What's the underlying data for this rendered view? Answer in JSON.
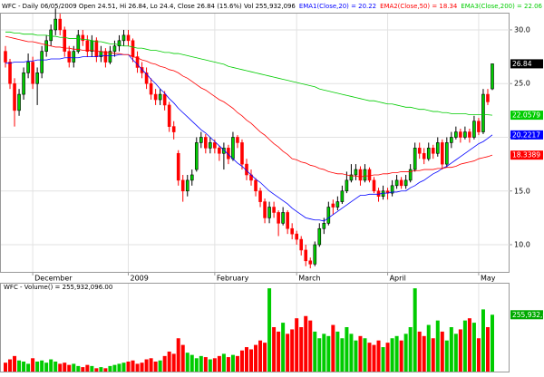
{
  "chart_data": {
    "type": "candlestick",
    "title": "WFC - Daily 06/05/2009 Open 24.51, Hi 26.84, Lo 24.4, Close 26.84 (15.6%) Vol 255,932,096",
    "xticks": [
      {
        "value": 6,
        "label": "December"
      },
      {
        "value": 27,
        "label": "2009"
      },
      {
        "value": 46,
        "label": "February"
      },
      {
        "value": 64,
        "label": "March"
      },
      {
        "value": 84,
        "label": "April"
      },
      {
        "value": 104,
        "label": "May"
      }
    ],
    "ylim": [
      7.47,
      31.6
    ],
    "yticks": [
      {
        "value": 10,
        "label": "10.0"
      },
      {
        "value": 15,
        "label": "15.0"
      },
      {
        "value": 20,
        "label": "20.0"
      },
      {
        "value": 25,
        "label": "25.0"
      },
      {
        "value": 30,
        "label": "30.0"
      }
    ],
    "grid": true,
    "up_color": "#00cc00",
    "down_color": "#ff0000",
    "candles": [
      [
        28,
        28.5,
        26.5,
        27
      ],
      [
        27,
        27.3,
        24.5,
        25
      ],
      [
        25,
        25.5,
        21,
        22.5
      ],
      [
        22.5,
        24.5,
        22,
        24
      ],
      [
        24,
        26.5,
        23.5,
        26
      ],
      [
        26,
        27.8,
        25.5,
        27
      ],
      [
        27,
        27.5,
        24.5,
        25
      ],
      [
        25,
        26.5,
        23,
        26
      ],
      [
        26,
        28.5,
        25.5,
        28
      ],
      [
        28,
        29.5,
        27.5,
        29
      ],
      [
        29,
        30.5,
        28.5,
        30
      ],
      [
        30,
        32,
        29.5,
        31
      ],
      [
        31,
        31.5,
        29.5,
        30
      ],
      [
        30,
        30.3,
        27.5,
        28
      ],
      [
        28,
        28.5,
        26.5,
        27
      ],
      [
        27,
        28.5,
        26.5,
        28
      ],
      [
        28,
        30,
        27.8,
        29.5
      ],
      [
        29.5,
        30,
        28.5,
        29
      ],
      [
        29,
        29.5,
        27.5,
        28
      ],
      [
        28,
        29.5,
        27.5,
        29
      ],
      [
        29,
        29.3,
        27,
        27.5
      ],
      [
        27.5,
        28.5,
        27,
        28
      ],
      [
        28,
        28.3,
        26.5,
        27
      ],
      [
        27,
        28.5,
        26.8,
        28
      ],
      [
        28,
        29,
        27.5,
        28.5
      ],
      [
        28.5,
        29.5,
        28,
        29
      ],
      [
        29,
        30,
        28.5,
        29.5
      ],
      [
        29.5,
        30,
        28.5,
        29
      ],
      [
        29,
        29.2,
        27,
        27.5
      ],
      [
        27.5,
        28,
        26,
        26.5
      ],
      [
        26.5,
        27,
        25.5,
        26
      ],
      [
        26,
        26.5,
        24.5,
        25
      ],
      [
        25,
        25.5,
        23.5,
        24
      ],
      [
        24,
        24.5,
        23,
        23.5
      ],
      [
        23.5,
        24.5,
        23,
        24
      ],
      [
        24,
        24.3,
        22.5,
        23
      ],
      [
        23,
        23.3,
        20.5,
        21
      ],
      [
        21,
        21.5,
        19.8,
        20.5
      ],
      [
        18.5,
        18.8,
        15.5,
        16
      ],
      [
        16,
        16.5,
        14,
        15
      ],
      [
        15,
        16.5,
        14.5,
        16
      ],
      [
        16,
        17,
        15.5,
        16.5
      ],
      [
        17,
        20,
        16.8,
        19.5
      ],
      [
        19.5,
        20.5,
        19,
        20
      ],
      [
        20,
        20.3,
        18.5,
        19
      ],
      [
        19,
        20,
        18.5,
        19.5
      ],
      [
        19.5,
        19.8,
        18.5,
        19
      ],
      [
        19,
        19.2,
        17.8,
        18.5
      ],
      [
        18.5,
        19.5,
        17,
        19
      ],
      [
        19,
        19.3,
        17.5,
        18
      ],
      [
        18,
        20.5,
        17.8,
        20
      ],
      [
        20,
        20.2,
        19,
        19.5
      ],
      [
        19.5,
        19.8,
        17,
        17.5
      ],
      [
        17.5,
        18,
        16,
        16.5
      ],
      [
        16.5,
        17,
        15.5,
        16
      ],
      [
        16,
        16.2,
        14.5,
        15
      ],
      [
        15,
        15.3,
        13.5,
        14
      ],
      [
        14,
        14.3,
        12,
        12.5
      ],
      [
        12.5,
        14,
        12,
        13.5
      ],
      [
        13.5,
        14,
        12.5,
        13
      ],
      [
        13,
        13.2,
        10.8,
        12
      ],
      [
        12,
        13.5,
        11.8,
        13
      ],
      [
        13,
        13.2,
        11,
        11.5
      ],
      [
        11.5,
        12,
        10.5,
        11
      ],
      [
        11,
        11.3,
        10,
        10.5
      ],
      [
        10.5,
        10.8,
        9,
        9.5
      ],
      [
        9.5,
        10,
        8,
        8.5
      ],
      [
        8.5,
        8.8,
        7.8,
        8.2
      ],
      [
        8.2,
        10.3,
        8,
        10
      ],
      [
        10,
        12,
        9.8,
        11.5
      ],
      [
        11.5,
        12.5,
        11,
        12
      ],
      [
        12,
        14,
        11.8,
        13.5
      ],
      [
        13.8,
        14.2,
        12.8,
        13.5
      ],
      [
        13.5,
        14.5,
        13.2,
        14
      ],
      [
        14,
        15.5,
        13.8,
        15
      ],
      [
        15,
        16.8,
        14.8,
        16
      ],
      [
        16,
        17.5,
        15.8,
        16.5
      ],
      [
        16.5,
        17.5,
        16,
        17
      ],
      [
        17,
        17.3,
        15.5,
        16
      ],
      [
        16,
        17.5,
        15.8,
        17
      ],
      [
        17,
        17.2,
        15.8,
        16
      ],
      [
        16,
        16.3,
        14.8,
        15
      ],
      [
        15,
        15.3,
        14,
        14.5
      ],
      [
        14.5,
        15.5,
        14.2,
        15
      ],
      [
        15,
        15.3,
        14.2,
        14.8
      ],
      [
        14.8,
        16,
        14.5,
        15.5
      ],
      [
        15.5,
        16.5,
        15.2,
        16
      ],
      [
        16,
        16.3,
        15.2,
        15.5
      ],
      [
        15.5,
        16.5,
        15.2,
        16
      ],
      [
        16,
        17.5,
        15.8,
        17
      ],
      [
        17,
        19.5,
        16.8,
        19
      ],
      [
        19,
        19.5,
        18,
        18.5
      ],
      [
        18.5,
        19,
        17.5,
        18
      ],
      [
        18,
        19.5,
        17.8,
        19
      ],
      [
        19,
        19.3,
        18,
        18.5
      ],
      [
        18.5,
        20,
        18.2,
        19.5
      ],
      [
        19.5,
        19.8,
        17,
        17.5
      ],
      [
        17.5,
        20,
        17.2,
        19.5
      ],
      [
        19.5,
        20.5,
        19,
        20
      ],
      [
        20,
        21,
        19.8,
        20.5
      ],
      [
        20.5,
        20.8,
        19.5,
        20
      ],
      [
        20,
        21,
        19.8,
        20.5
      ],
      [
        20.5,
        20.8,
        19.5,
        20
      ],
      [
        20,
        22,
        19.8,
        21.5
      ],
      [
        21.5,
        21.8,
        20.2,
        20.5
      ],
      [
        20.5,
        24.5,
        20.3,
        24
      ],
      [
        24,
        24.5,
        23,
        23.3
      ],
      [
        24.51,
        26.84,
        24.4,
        26.84
      ]
    ],
    "series": [
      {
        "name": "EMA1(Close,20) = 20.22",
        "color": "#0000ff",
        "values": [
          26.9,
          26.9,
          27.0,
          27.0,
          27.0,
          27.1,
          27.1,
          27.2,
          27.2,
          27.2,
          27.3,
          27.3,
          27.3,
          27.4,
          27.4,
          27.4,
          27.4,
          27.5,
          27.5,
          27.5,
          27.5,
          27.6,
          27.6,
          27.6,
          27.6,
          27.7,
          27.7,
          27.7,
          27.2,
          26.8,
          26.3,
          25.9,
          25.4,
          25.0,
          24.5,
          24.1,
          23.6,
          23.2,
          22.7,
          22.3,
          21.9,
          21.5,
          21.1,
          20.7,
          20.4,
          20.0,
          19.6,
          19.2,
          18.8,
          18.4,
          18.0,
          17.6,
          17.3,
          16.9,
          16.5,
          16.1,
          15.8,
          15.4,
          15.0,
          14.7,
          14.4,
          14.1,
          13.8,
          13.4,
          13.1,
          12.8,
          12.5,
          12.4,
          12.3,
          12.3,
          12.2,
          12.5,
          12.8,
          13.1,
          13.4,
          13.7,
          14.0,
          14.3,
          14.6,
          14.6,
          14.7,
          14.7,
          14.7,
          14.8,
          14.8,
          14.9,
          14.9,
          15.0,
          15.0,
          15.3,
          15.5,
          15.8,
          16.0,
          16.3,
          16.6,
          16.8,
          17.1,
          17.3,
          17.6,
          17.9,
          18.2,
          18.5,
          18.8,
          19.1,
          19.4,
          19.6,
          19.9,
          20.2217
        ]
      },
      {
        "name": "EMA2(Close,50) = 18.34",
        "color": "#ff0000",
        "values": [
          29.4,
          29.3,
          29.2,
          29.1,
          29.0,
          28.9,
          28.9,
          28.8,
          28.7,
          28.6,
          28.5,
          28.4,
          28.4,
          28.3,
          28.3,
          28.2,
          28.2,
          28.1,
          28.1,
          28.1,
          28.0,
          28.0,
          27.9,
          27.9,
          27.8,
          27.8,
          27.7,
          27.7,
          27.5,
          27.4,
          27.2,
          27.1,
          26.9,
          26.8,
          26.6,
          26.5,
          26.3,
          26.2,
          26.0,
          25.7,
          25.5,
          25.2,
          24.9,
          24.6,
          24.4,
          24.1,
          23.8,
          23.5,
          23.3,
          23.0,
          22.7,
          22.3,
          22.0,
          21.6,
          21.3,
          20.9,
          20.5,
          20.2,
          19.8,
          19.4,
          19.1,
          18.7,
          18.4,
          18.0,
          17.9,
          17.7,
          17.6,
          17.4,
          17.3,
          17.1,
          17.0,
          16.8,
          16.7,
          16.6,
          16.6,
          16.5,
          16.4,
          16.4,
          16.3,
          16.4,
          16.4,
          16.5,
          16.5,
          16.6,
          16.6,
          16.7,
          16.7,
          16.8,
          16.8,
          16.8,
          16.9,
          16.9,
          17.0,
          17.0,
          17.0,
          17.1,
          17.1,
          17.2,
          17.2,
          17.3,
          17.5,
          17.6,
          17.7,
          17.8,
          18.0,
          18.1,
          18.2,
          18.3389
        ]
      },
      {
        "name": "EMA3(Close,200) = 22.06",
        "color": "#00cc00",
        "values": [
          29.8,
          29.8,
          29.7,
          29.7,
          29.6,
          29.6,
          29.6,
          29.5,
          29.5,
          29.5,
          29.4,
          29.4,
          29.3,
          29.3,
          29.2,
          29.2,
          29.2,
          29.1,
          29.1,
          29.0,
          28.9,
          28.9,
          28.8,
          28.7,
          28.7,
          28.6,
          28.5,
          28.5,
          28.4,
          28.3,
          28.3,
          28.2,
          28.1,
          28.1,
          28.0,
          27.9,
          27.9,
          27.8,
          27.8,
          27.7,
          27.6,
          27.5,
          27.4,
          27.3,
          27.2,
          27.1,
          27.0,
          26.9,
          26.8,
          26.6,
          26.5,
          26.4,
          26.3,
          26.2,
          26.1,
          26.0,
          25.9,
          25.8,
          25.7,
          25.6,
          25.5,
          25.4,
          25.3,
          25.2,
          25.1,
          25.0,
          24.9,
          24.8,
          24.7,
          24.5,
          24.4,
          24.3,
          24.2,
          24.1,
          24.0,
          23.9,
          23.8,
          23.7,
          23.6,
          23.5,
          23.4,
          23.4,
          23.3,
          23.2,
          23.1,
          23.1,
          23.0,
          22.9,
          22.8,
          22.8,
          22.7,
          22.6,
          22.6,
          22.5,
          22.4,
          22.4,
          22.3,
          22.3,
          22.2,
          22.2,
          22.2,
          22.2,
          22.1,
          22.1,
          22.1,
          22.1,
          22.1,
          22.0579
        ]
      }
    ],
    "volume": {
      "title": "WFC - Volume() = 255,932,096.00",
      "label": "255,932,096",
      "color": "#00aa00",
      "ylim": [
        0,
        400000000.0
      ],
      "values": [
        40000000.0,
        55000000.0,
        70000000.0,
        50000000.0,
        45000000.0,
        35000000.0,
        60000000.0,
        45000000.0,
        50000000.0,
        40000000.0,
        55000000.0,
        45000000.0,
        35000000.0,
        40000000.0,
        30000000.0,
        35000000.0,
        25000000.0,
        20000000.0,
        30000000.0,
        25000000.0,
        15000000.0,
        20000000.0,
        15000000.0,
        25000000.0,
        30000000.0,
        35000000.0,
        40000000.0,
        45000000.0,
        50000000.0,
        35000000.0,
        40000000.0,
        55000000.0,
        60000000.0,
        45000000.0,
        50000000.0,
        70000000.0,
        90000000.0,
        80000000.0,
        150000000.0,
        120000000.0,
        85000000.0,
        75000000.0,
        60000000.0,
        70000000.0,
        65000000.0,
        55000000.0,
        60000000.0,
        70000000.0,
        80000000.0,
        65000000.0,
        75000000.0,
        70000000.0,
        95000000.0,
        110000000.0,
        100000000.0,
        120000000.0,
        140000000.0,
        130000000.0,
        375000000.0,
        200000000.0,
        180000000.0,
        220000000.0,
        170000000.0,
        190000000.0,
        240000000.0,
        200000000.0,
        250000000.0,
        230000000.0,
        180000000.0,
        150000000.0,
        170000000.0,
        160000000.0,
        210000000.0,
        180000000.0,
        150000000.0,
        200000000.0,
        170000000.0,
        140000000.0,
        160000000.0,
        150000000.0,
        130000000.0,
        120000000.0,
        140000000.0,
        110000000.0,
        130000000.0,
        150000000.0,
        160000000.0,
        140000000.0,
        170000000.0,
        200000000.0,
        375000000.0,
        180000000.0,
        160000000.0,
        210000000.0,
        150000000.0,
        230000000.0,
        180000000.0,
        140000000.0,
        200000000.0,
        170000000.0,
        190000000.0,
        230000000.0,
        240000000.0,
        220000000.0,
        150000000.0,
        280000000.0,
        200000000.0,
        255932096
      ]
    }
  }
}
